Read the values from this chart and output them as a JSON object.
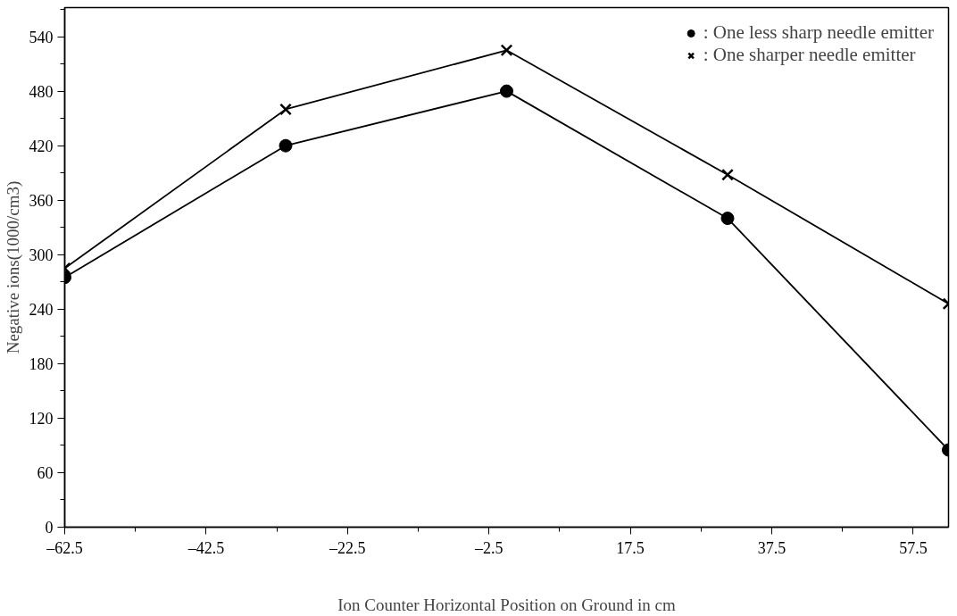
{
  "chart_data": {
    "type": "line",
    "xlabel": "Ion Counter Horizontal Position on Ground in cm",
    "ylabel": "Negative ions(1000/cm3)",
    "x": [
      -62.5,
      -31.25,
      0,
      31.25,
      62.5
    ],
    "series": [
      {
        "name": ": One less sharp needle emitter",
        "color": "#000000",
        "marker": "circle",
        "values": [
          275,
          420,
          480,
          340,
          85
        ]
      },
      {
        "name": ": One sharper needle emitter",
        "color": "#000000",
        "marker": "cross",
        "values": [
          285,
          460,
          525,
          388,
          246
        ]
      }
    ],
    "xlim": [
      -62.5,
      62.5
    ],
    "ylim": [
      0,
      572
    ],
    "xticks": [
      {
        "value": -62.5,
        "label": "–62.5"
      },
      {
        "value": -42.5,
        "label": "–42.5"
      },
      {
        "value": -22.5,
        "label": "–22.5"
      },
      {
        "value": -2.5,
        "label": "–2.5"
      },
      17.5,
      37.5,
      57.5
    ],
    "yticks": [
      0,
      60,
      120,
      180,
      240,
      300,
      360,
      420,
      480,
      540
    ],
    "grid": false,
    "legend": "top right",
    "line_style": "solid"
  }
}
